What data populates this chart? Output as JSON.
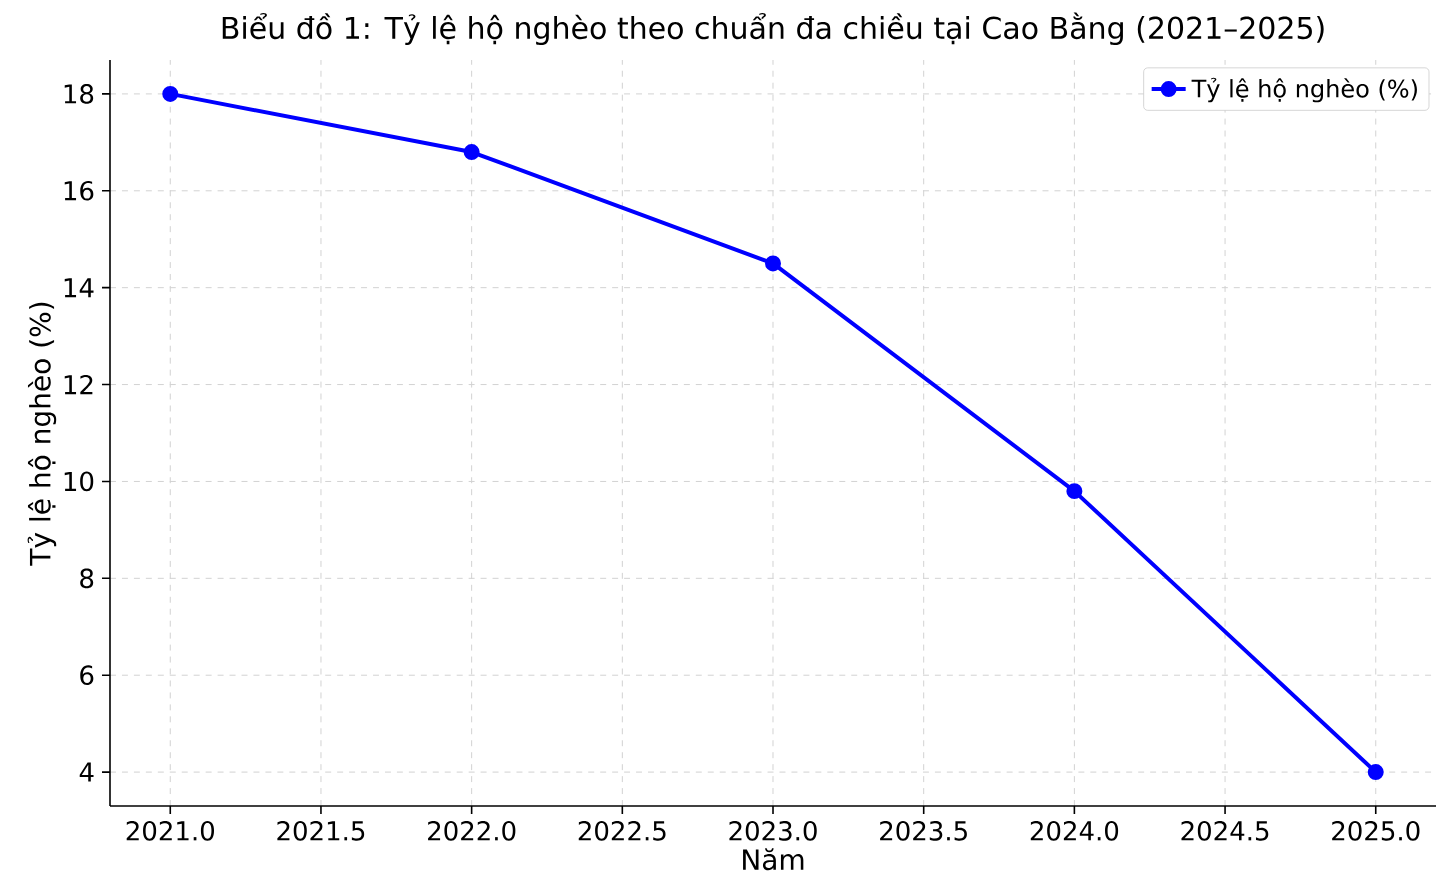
{
  "chart_data": {
    "type": "line",
    "title": "Biểu đồ 1: Tỷ lệ hộ nghèo theo chuẩn đa chiều tại Cao Bằng (2021–2025)",
    "xlabel": "Năm",
    "ylabel": "Tỷ lệ hộ nghèo (%)",
    "x": [
      2021,
      2022,
      2023,
      2024,
      2025
    ],
    "series": [
      {
        "name": "Tỷ lệ hộ nghèo (%)",
        "color": "#0000ff",
        "values": [
          18.0,
          16.8,
          14.5,
          9.8,
          4.0
        ]
      }
    ],
    "xlim": [
      2020.8,
      2025.2
    ],
    "ylim": [
      3.3,
      18.7
    ],
    "xticks": [
      {
        "value": 2021,
        "label": "2021.0"
      },
      {
        "value": 2021.5,
        "label": "2021.5"
      },
      {
        "value": 2022,
        "label": "2022.0"
      },
      {
        "value": 2022.5,
        "label": "2022.5"
      },
      {
        "value": 2023,
        "label": "2023.0"
      },
      {
        "value": 2023.5,
        "label": "2023.5"
      },
      {
        "value": 2024,
        "label": "2024.0"
      },
      {
        "value": 2024.5,
        "label": "2024.5"
      },
      {
        "value": 2025,
        "label": "2025.0"
      }
    ],
    "yticks": [
      4,
      6,
      8,
      10,
      12,
      14,
      16,
      18
    ],
    "grid": true,
    "legend": "top right",
    "marker": "circle",
    "line_style": "solid"
  }
}
